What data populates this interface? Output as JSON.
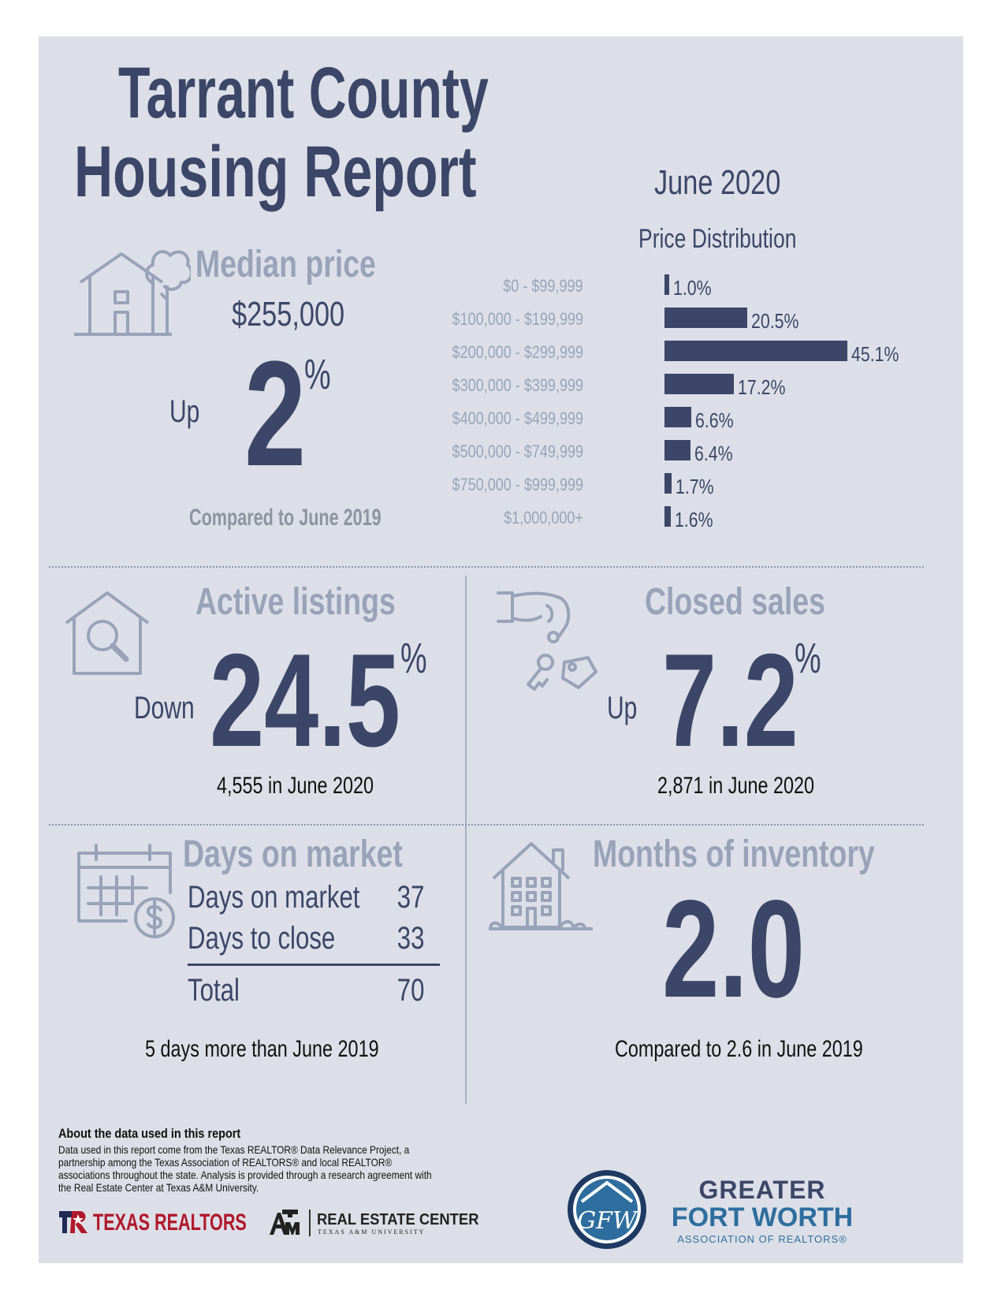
{
  "title": {
    "line1": "Tarrant County",
    "line2": "Housing Report"
  },
  "report_month": "June 2020",
  "median_price": {
    "heading": "Median price",
    "value": "$255,000",
    "direction": "Up",
    "change_number": "2",
    "percent_sign": "%",
    "comparison": "Compared to June 2019"
  },
  "chart_data": {
    "type": "bar",
    "title": "Price Distribution",
    "orientation": "horizontal",
    "categories": [
      "$0 - $99,999",
      "$100,000 - $199,999",
      "$200,000 - $299,999",
      "$300,000 - $399,999",
      "$400,000 - $499,999",
      "$500,000 - $749,999",
      "$750,000 - $999,999",
      "$1,000,000+"
    ],
    "values": [
      1.0,
      20.5,
      45.1,
      17.2,
      6.6,
      6.4,
      1.7,
      1.6
    ],
    "value_labels": [
      "1.0%",
      "20.5%",
      "45.1%",
      "17.2%",
      "6.6%",
      "6.4%",
      "1.7%",
      "1.6%"
    ],
    "bar_color": "#3c4668"
  },
  "active_listings": {
    "heading": "Active listings",
    "direction": "Down",
    "change_number": "24.5",
    "percent_sign": "%",
    "detail": "4,555 in June 2020"
  },
  "closed_sales": {
    "heading": "Closed sales",
    "direction": "Up",
    "change_number": "7.2",
    "percent_sign": "%",
    "detail": "2,871 in June 2020"
  },
  "days_on_market": {
    "heading": "Days on market",
    "rows": [
      {
        "label": "Days on market",
        "value": "37"
      },
      {
        "label": "Days to close",
        "value": "33"
      }
    ],
    "total": {
      "label": "Total",
      "value": "70"
    },
    "comparison": "5 days more than June 2019"
  },
  "months_inventory": {
    "heading": "Months of inventory",
    "value": "2.0",
    "comparison": "Compared to 2.6 in June 2019"
  },
  "about": {
    "heading": "About the data used in this report",
    "body": "Data used in this report come from the Texas REALTOR® Data Relevance Project, a partnership among the Texas Association of REALTORS® and local REALTOR® associations throughout the state. Analysis is provided through a research agreement with the Real Estate Center at Texas A&M University."
  },
  "logos": {
    "texas_realtors": "TEXAS REALTORS",
    "real_estate_center": "REAL ESTATE CENTER",
    "real_estate_center_sub": "TEXAS A&M UNIVERSITY",
    "gfw_line1": "GREATER",
    "gfw_line2": "FORT WORTH",
    "gfw_line3": "ASSOCIATION OF REALTORS®",
    "gfw_monogram": "GFW"
  },
  "colors": {
    "navy": "#3c4668",
    "gray": "#98a3b9",
    "background": "#dcdfe7",
    "accent_blue": "#2e6e9e",
    "texas_red": "#b0182a"
  }
}
